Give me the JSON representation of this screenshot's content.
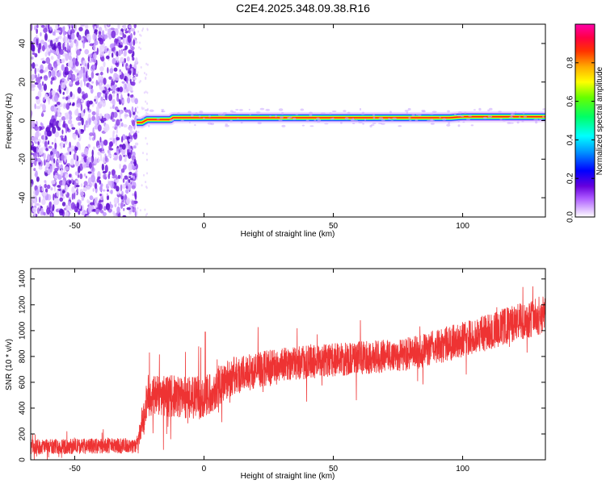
{
  "figure": {
    "title": "C2E4.2025.348.09.38.R16"
  },
  "chart_data": [
    {
      "type": "heatmap",
      "title": "",
      "xlabel": "Height of straight line (km)",
      "ylabel": "Frequency (Hz)",
      "xlim": [
        -67,
        132
      ],
      "ylim": [
        -50,
        50
      ],
      "x_ticks": [
        -50,
        0,
        50,
        100
      ],
      "y_ticks": [
        40,
        20,
        0,
        -20,
        -40
      ],
      "colorbar": {
        "label": "Normalized spectral amplitude",
        "ticks": [
          0.0,
          0.2,
          0.4,
          0.6,
          0.8
        ],
        "range": [
          0,
          1
        ],
        "colors": [
          "#ffffff",
          "#cc88ff",
          "#6600cc",
          "#0000ff",
          "#00ffff",
          "#00ff00",
          "#ffff00",
          "#ff8800",
          "#ff0000",
          "#ff00aa"
        ]
      },
      "noise_region": {
        "x_range": [
          -67,
          -26
        ],
        "y_range": [
          -50,
          50
        ],
        "level": 0.25
      },
      "ridge": [
        {
          "x": -26,
          "y": -1
        },
        {
          "x": -24,
          "y": -1
        },
        {
          "x": -22,
          "y": 0.5
        },
        {
          "x": -13,
          "y": 0.5
        },
        {
          "x": -12,
          "y": 1.5
        },
        {
          "x": 95,
          "y": 1.5
        },
        {
          "x": 100,
          "y": 2
        },
        {
          "x": 132,
          "y": 2
        }
      ]
    },
    {
      "type": "line",
      "title": "",
      "xlabel": "Height of straight line (km)",
      "ylabel": "SNR (10 * v/v)",
      "xlim": [
        -67,
        132
      ],
      "ylim": [
        0,
        1480
      ],
      "x_ticks": [
        -50,
        0,
        50,
        100
      ],
      "y_ticks": [
        0,
        200,
        400,
        600,
        800,
        1000,
        1200,
        1400
      ],
      "color": "#ee3333",
      "trend": [
        {
          "x": -67,
          "mean": 100,
          "spread": 60
        },
        {
          "x": -26,
          "mean": 110,
          "spread": 60
        },
        {
          "x": -23,
          "mean": 330,
          "spread": 140
        },
        {
          "x": -22,
          "mean": 500,
          "spread": 160
        },
        {
          "x": 0,
          "mean": 480,
          "spread": 170
        },
        {
          "x": 10,
          "mean": 640,
          "spread": 150
        },
        {
          "x": 30,
          "mean": 740,
          "spread": 130
        },
        {
          "x": 80,
          "mean": 820,
          "spread": 130
        },
        {
          "x": 100,
          "mean": 930,
          "spread": 140
        },
        {
          "x": 132,
          "mean": 1130,
          "spread": 150
        }
      ]
    }
  ]
}
